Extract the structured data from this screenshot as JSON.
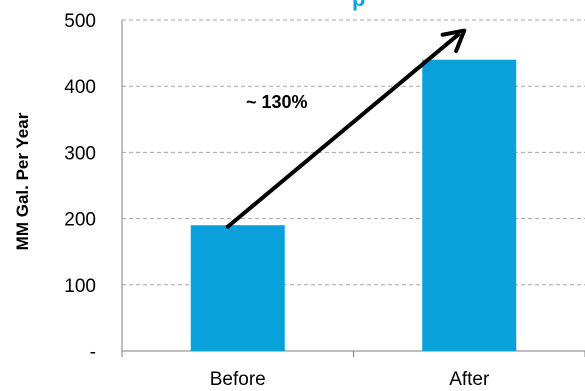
{
  "chart_data": {
    "type": "bar",
    "title_fragment": "p",
    "categories": [
      "Before",
      "After"
    ],
    "values": [
      190,
      440
    ],
    "ylabel": "MM Gal. Per Year",
    "xlabel": "",
    "ylim": [
      0,
      500
    ],
    "yticks": [
      0,
      100,
      200,
      300,
      400,
      500
    ],
    "ytick_labels": [
      "-",
      "100",
      "200",
      "300",
      "400",
      "500"
    ],
    "grid": true,
    "annotation": {
      "text": "~ 130%",
      "arrow_from": {
        "category": "Before",
        "value": 230
      },
      "arrow_to": {
        "category": "After",
        "value": 475
      }
    },
    "colors": {
      "bar": "#0aa0dc",
      "title": "#0aa0dc",
      "grid": "#a6a6a6",
      "axis": "#7f7f7f",
      "arrow": "#000000"
    }
  }
}
